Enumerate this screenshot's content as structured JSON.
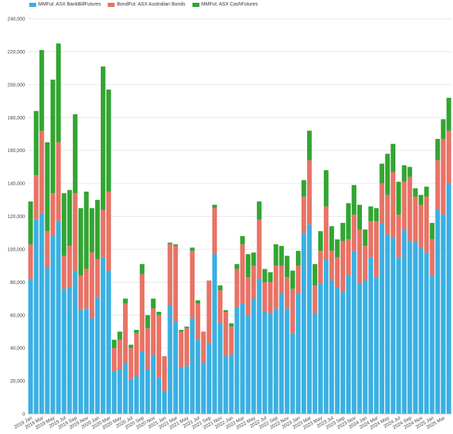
{
  "chart_data": {
    "type": "bar",
    "stacked": true,
    "legend": {
      "placement": "top-left"
    },
    "grid": true,
    "ylim": [
      0,
      240000
    ],
    "yticks": [
      "0",
      "20,000",
      "40,000",
      "60,000",
      "80,000",
      "100,000",
      "120,000",
      "140,000",
      "160,000",
      "180,000",
      "200,000",
      "220,000",
      "240,000"
    ],
    "ytick_values": [
      0,
      20000,
      40000,
      60000,
      80000,
      100000,
      120000,
      140000,
      160000,
      180000,
      200000,
      220000,
      240000
    ],
    "xtick_labels": [
      "2019 Jan",
      "2019 Mar",
      "2019 May",
      "2019 Jul",
      "2019 Sep",
      "2019 Nov",
      "2020 Jan",
      "2020 Mar",
      "2020 May",
      "2020 Jul",
      "2020 Sep",
      "2020 Nov",
      "2021 Jan",
      "2021 Mar",
      "2021 May",
      "2021 Jul",
      "2021 Sep",
      "2021 Nov",
      "2022 Jan",
      "2022 Mar",
      "2022 May",
      "2022 Jul",
      "2022 Sep",
      "2022 Nov",
      "2023 Jan",
      "2023 Mar",
      "2023 May",
      "2023 Jul",
      "2023 Sep",
      "2023 Nov",
      "2024 Jan",
      "2024 Mar",
      "2024 May",
      "2024 Jul",
      "2024 Sep",
      "2024 Nov",
      "2025 Jan",
      "2025 Mar"
    ],
    "series": [
      {
        "name": "MMFut: ASX BankBillFutures",
        "color": "#3ab0e2",
        "values": [
          82000,
          118000,
          122000,
          89000,
          108000,
          117000,
          76000,
          77000,
          87000,
          63000,
          64000,
          58000,
          71000,
          95000,
          87000,
          26000,
          27000,
          31000,
          21000,
          23000,
          38000,
          27000,
          36000,
          22000,
          14000,
          66000,
          56000,
          28000,
          29000,
          58000,
          45000,
          31000,
          43000,
          97000,
          55000,
          35000,
          36000,
          65000,
          67000,
          60000,
          70000,
          82000,
          62000,
          61000,
          64000,
          73000,
          64000,
          49000,
          73000,
          110000,
          115000,
          61000,
          79000,
          94000,
          81000,
          77000,
          74000,
          84000,
          99000,
          79000,
          81000,
          95000,
          83000,
          116000,
          109000,
          107000,
          95000,
          112000,
          105000,
          105000,
          101000,
          98000,
          84000,
          124000,
          121000,
          140000
        ]
      },
      {
        "name": "BondFut: ASX Australian Bonds",
        "color": "#e87366",
        "values": [
          21000,
          27000,
          50000,
          22000,
          26000,
          48000,
          20000,
          25000,
          47000,
          21000,
          24000,
          40000,
          23000,
          29000,
          48000,
          14000,
          18000,
          36000,
          19000,
          26000,
          47000,
          25000,
          28000,
          38000,
          21000,
          37000,
          46000,
          22000,
          23000,
          41000,
          22000,
          19000,
          38000,
          28000,
          20000,
          27000,
          17000,
          23000,
          36000,
          23000,
          20000,
          36000,
          18000,
          19000,
          26000,
          17000,
          19000,
          27000,
          17000,
          22000,
          39000,
          17000,
          20000,
          32000,
          18000,
          18000,
          31000,
          22000,
          22000,
          33000,
          21000,
          22000,
          34000,
          24000,
          24000,
          40000,
          26000,
          29000,
          39000,
          27000,
          26000,
          34000,
          22000,
          30000,
          46000,
          32000
        ]
      },
      {
        "name": "MMFut: ASX CashFutures",
        "color": "#33a532",
        "values": [
          26000,
          39000,
          49000,
          54000,
          69000,
          60000,
          38000,
          34000,
          48000,
          41000,
          47000,
          27000,
          36000,
          87000,
          62000,
          5000,
          5000,
          3000,
          2000,
          2000,
          6000,
          8000,
          6000,
          2000,
          0,
          1000,
          1000,
          1000,
          1000,
          2000,
          2000,
          0,
          0,
          2000,
          3000,
          1000,
          2000,
          3000,
          5000,
          14000,
          8000,
          11000,
          8000,
          6000,
          13000,
          12000,
          13000,
          11000,
          9000,
          10000,
          18000,
          13000,
          12000,
          22000,
          15000,
          11000,
          11000,
          22000,
          18000,
          15000,
          10000,
          9000,
          8000,
          12000,
          25000,
          17000,
          20000,
          10000,
          6000,
          5000,
          6000,
          6000,
          10000,
          13000,
          12000,
          20000
        ]
      }
    ]
  }
}
